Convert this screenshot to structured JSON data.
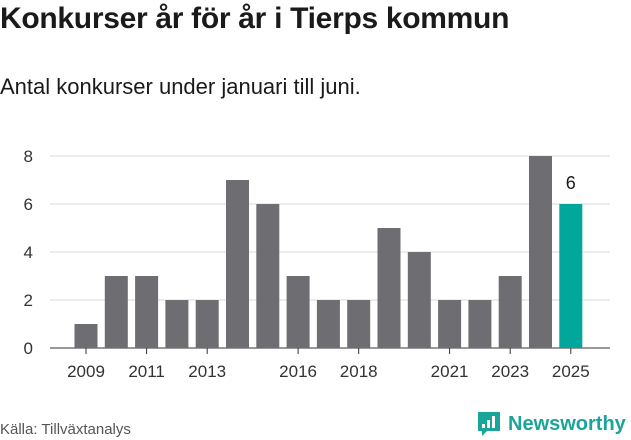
{
  "title": "Konkurser år för år i Tierps kommun",
  "subtitle": "Antal konkurser under januari till juni.",
  "source": "Källa: Tillväxtanalys",
  "brand": {
    "name": "Newsworthy",
    "color": "#1aa59a"
  },
  "colors": {
    "bar": "#6e6d72",
    "highlight": "#00a79a",
    "grid": "#d9d9d9",
    "axis": "#333333"
  },
  "chart_data": {
    "type": "bar",
    "title": "Konkurser år för år i Tierps kommun",
    "subtitle": "Antal konkurser under januari till juni.",
    "xlabel": "",
    "ylabel": "",
    "categories": [
      "2009",
      "2010",
      "2011",
      "2012",
      "2013",
      "2014",
      "2015",
      "2016",
      "2017",
      "2018",
      "2019",
      "2020",
      "2021",
      "2022",
      "2023",
      "2024",
      "2025"
    ],
    "values": [
      1,
      3,
      3,
      2,
      2,
      7,
      6,
      3,
      2,
      2,
      5,
      4,
      2,
      2,
      3,
      8,
      6
    ],
    "x_tick_labels": [
      "2009",
      "2011",
      "2013",
      "2016",
      "2018",
      "2021",
      "2023",
      "2025"
    ],
    "y_ticks": [
      "0",
      "2",
      "4",
      "6",
      "8"
    ],
    "ylim": [
      0,
      8
    ],
    "grid": true,
    "highlight_index": 16,
    "highlight_label": "6"
  }
}
